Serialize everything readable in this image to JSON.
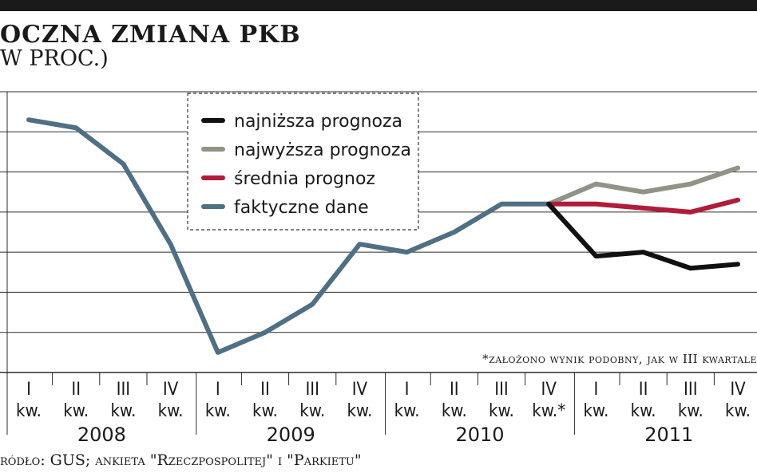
{
  "header": {
    "title": "OCZNA ZMIANA PKB",
    "subtitle": "W PROC.)"
  },
  "source": "ródło: GUS; ankieta \"Rzeczpospolitej\" i \"Parkietu\"",
  "chart_data": {
    "type": "line",
    "title": "OCZNA ZMIANA PKB",
    "ylabel": "",
    "xlabel": "",
    "grid": true,
    "legend_position": "top-center",
    "x": [
      "2008 I kw.",
      "2008 II kw.",
      "2008 III kw.",
      "2008 IV kw.",
      "2009 I kw.",
      "2009 II kw.",
      "2009 III kw.",
      "2009 IV kw.",
      "2010 I kw.",
      "2010 II kw.",
      "2010 III kw.",
      "2010 IV kw.*",
      "2011 I kw.",
      "2011 II kw.",
      "2011 III kw.",
      "2011 IV kw."
    ],
    "ylim": [
      0,
      7
    ],
    "ticks": [
      {
        "quarter": "I",
        "unit": "kw."
      },
      {
        "quarter": "II",
        "unit": "kw."
      },
      {
        "quarter": "III",
        "unit": "kw."
      },
      {
        "quarter": "IV",
        "unit": "kw."
      },
      {
        "quarter": "I",
        "unit": "kw."
      },
      {
        "quarter": "II",
        "unit": "kw."
      },
      {
        "quarter": "III",
        "unit": "kw."
      },
      {
        "quarter": "IV",
        "unit": "kw."
      },
      {
        "quarter": "I",
        "unit": "kw."
      },
      {
        "quarter": "II",
        "unit": "kw."
      },
      {
        "quarter": "III",
        "unit": "kw."
      },
      {
        "quarter": "IV",
        "unit": "kw.*"
      },
      {
        "quarter": "I",
        "unit": "kw."
      },
      {
        "quarter": "II",
        "unit": "kw."
      },
      {
        "quarter": "III",
        "unit": "kw."
      },
      {
        "quarter": "IV",
        "unit": "kw."
      }
    ],
    "years": [
      "2008",
      "2009",
      "2010",
      "2011"
    ],
    "series": [
      {
        "name": "faktyczne dane",
        "color": "#4f6f85",
        "values": [
          6.3,
          6.1,
          5.2,
          3.2,
          0.5,
          1.0,
          1.7,
          3.2,
          3.0,
          3.5,
          4.2,
          4.2,
          null,
          null,
          null,
          null
        ]
      },
      {
        "name": "najniższa prognoza",
        "color": "#111111",
        "values": [
          null,
          null,
          null,
          null,
          null,
          null,
          null,
          null,
          null,
          null,
          null,
          4.2,
          2.9,
          3.0,
          2.6,
          2.7
        ]
      },
      {
        "name": "najwyższa prognoza",
        "color": "#8f9486",
        "values": [
          null,
          null,
          null,
          null,
          null,
          null,
          null,
          null,
          null,
          null,
          null,
          4.2,
          4.7,
          4.5,
          4.7,
          5.1
        ]
      },
      {
        "name": "średnia prognoz",
        "color": "#b01c3a",
        "values": [
          null,
          null,
          null,
          null,
          null,
          null,
          null,
          null,
          null,
          null,
          null,
          4.2,
          4.2,
          4.1,
          4.0,
          4.3
        ]
      }
    ],
    "legend_order": [
      "najniższa prognoza",
      "najwyższa prognoza",
      "średnia prognoz",
      "faktyczne dane"
    ],
    "annotation": "*założono wynik podobny, jak w III kwartale"
  }
}
